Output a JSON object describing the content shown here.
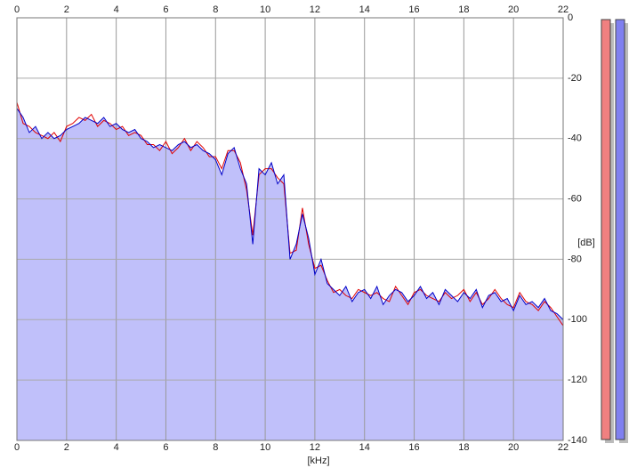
{
  "chart_data": {
    "type": "line",
    "x_label": "[kHz]",
    "y_label": "[dB]",
    "x": [
      0,
      0.25,
      0.5,
      0.75,
      1,
      1.25,
      1.5,
      1.75,
      2,
      2.25,
      2.5,
      2.75,
      3,
      3.25,
      3.5,
      3.75,
      4,
      4.25,
      4.5,
      4.75,
      5,
      5.25,
      5.5,
      5.75,
      6,
      6.25,
      6.5,
      6.75,
      7,
      7.25,
      7.5,
      7.75,
      8,
      8.25,
      8.5,
      8.75,
      9,
      9.25,
      9.5,
      9.75,
      10,
      10.25,
      10.5,
      10.75,
      11,
      11.25,
      11.5,
      11.75,
      12,
      12.25,
      12.5,
      12.75,
      13,
      13.25,
      13.5,
      13.75,
      14,
      14.25,
      14.5,
      14.75,
      15,
      15.25,
      15.5,
      15.75,
      16,
      16.25,
      16.5,
      16.75,
      17,
      17.25,
      17.5,
      17.75,
      18,
      18.25,
      18.5,
      18.75,
      19,
      19.25,
      19.5,
      19.75,
      20,
      20.25,
      20.5,
      20.75,
      21,
      21.25,
      21.5,
      21.75,
      22
    ],
    "series": [
      {
        "color": "#e00000",
        "values": [
          -28,
          -35,
          -36,
          -38,
          -39,
          -40,
          -38,
          -41,
          -36,
          -35,
          -33,
          -34,
          -32,
          -36,
          -34,
          -35,
          -37,
          -36,
          -39,
          -38,
          -39,
          -42,
          -42,
          -44,
          -41,
          -45,
          -43,
          -40,
          -44,
          -41,
          -43,
          -46,
          -46,
          -50,
          -44,
          -44,
          -48,
          -57,
          -72,
          -52,
          -50,
          -50,
          -53,
          -55,
          -78,
          -77,
          -63,
          -75,
          -83,
          -82,
          -87,
          -91,
          -90,
          -92,
          -93,
          -90,
          -91,
          -92,
          -91,
          -93,
          -94,
          -89,
          -92,
          -95,
          -91,
          -90,
          -92,
          -93,
          -94,
          -91,
          -93,
          -92,
          -90,
          -94,
          -91,
          -95,
          -93,
          -90,
          -93,
          -95,
          -96,
          -91,
          -94,
          -95,
          -97,
          -94,
          -96,
          -99,
          -102
        ]
      },
      {
        "color": "#0000c8",
        "values": [
          -30,
          -33,
          -38,
          -36,
          -40,
          -38,
          -40,
          -39,
          -37,
          -36,
          -35,
          -33,
          -34,
          -35,
          -33,
          -36,
          -35,
          -37,
          -38,
          -37,
          -40,
          -41,
          -43,
          -42,
          -43,
          -44,
          -42,
          -41,
          -43,
          -42,
          -44,
          -45,
          -47,
          -52,
          -45,
          -43,
          -50,
          -55,
          -75,
          -50,
          -52,
          -48,
          -55,
          -52,
          -80,
          -75,
          -65,
          -73,
          -85,
          -80,
          -88,
          -90,
          -92,
          -89,
          -94,
          -91,
          -90,
          -93,
          -89,
          -95,
          -92,
          -90,
          -91,
          -94,
          -92,
          -89,
          -93,
          -91,
          -95,
          -90,
          -92,
          -94,
          -91,
          -93,
          -90,
          -96,
          -92,
          -91,
          -94,
          -93,
          -97,
          -92,
          -95,
          -94,
          -96,
          -93,
          -97,
          -98,
          -100
        ]
      }
    ],
    "fill_color": "#c0c0fa",
    "xlim": [
      0,
      22
    ],
    "xticks": [
      0,
      2,
      4,
      6,
      8,
      10,
      12,
      14,
      16,
      18,
      20,
      22
    ],
    "ylim": [
      -140,
      0
    ],
    "yticks": [
      0,
      -20,
      -40,
      -60,
      -80,
      -100,
      -120,
      -140
    ],
    "grid": true
  }
}
